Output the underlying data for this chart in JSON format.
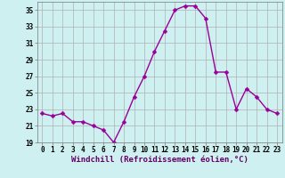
{
  "x": [
    0,
    1,
    2,
    3,
    4,
    5,
    6,
    7,
    8,
    9,
    10,
    11,
    12,
    13,
    14,
    15,
    16,
    17,
    18,
    19,
    20,
    21,
    22,
    23
  ],
  "y": [
    22.5,
    22.2,
    22.5,
    21.5,
    21.5,
    21.0,
    20.5,
    19.0,
    21.5,
    24.5,
    27.0,
    30.0,
    32.5,
    35.0,
    35.5,
    35.5,
    34.0,
    27.5,
    27.5,
    23.0,
    25.5,
    24.5,
    23.0,
    22.5
  ],
  "line_color": "#990099",
  "marker": "D",
  "marker_size": 2.5,
  "linewidth": 1.0,
  "bg_color": "#cff0f0",
  "grid_color": "#b0b0b0",
  "xlabel": "Windchill (Refroidissement éolien,°C)",
  "ylim": [
    19,
    36
  ],
  "yticks": [
    19,
    21,
    23,
    25,
    27,
    29,
    31,
    33,
    35
  ],
  "xticks": [
    0,
    1,
    2,
    3,
    4,
    5,
    6,
    7,
    8,
    9,
    10,
    11,
    12,
    13,
    14,
    15,
    16,
    17,
    18,
    19,
    20,
    21,
    22,
    23
  ],
  "tick_label_size": 5.5,
  "xlabel_size": 6.5
}
